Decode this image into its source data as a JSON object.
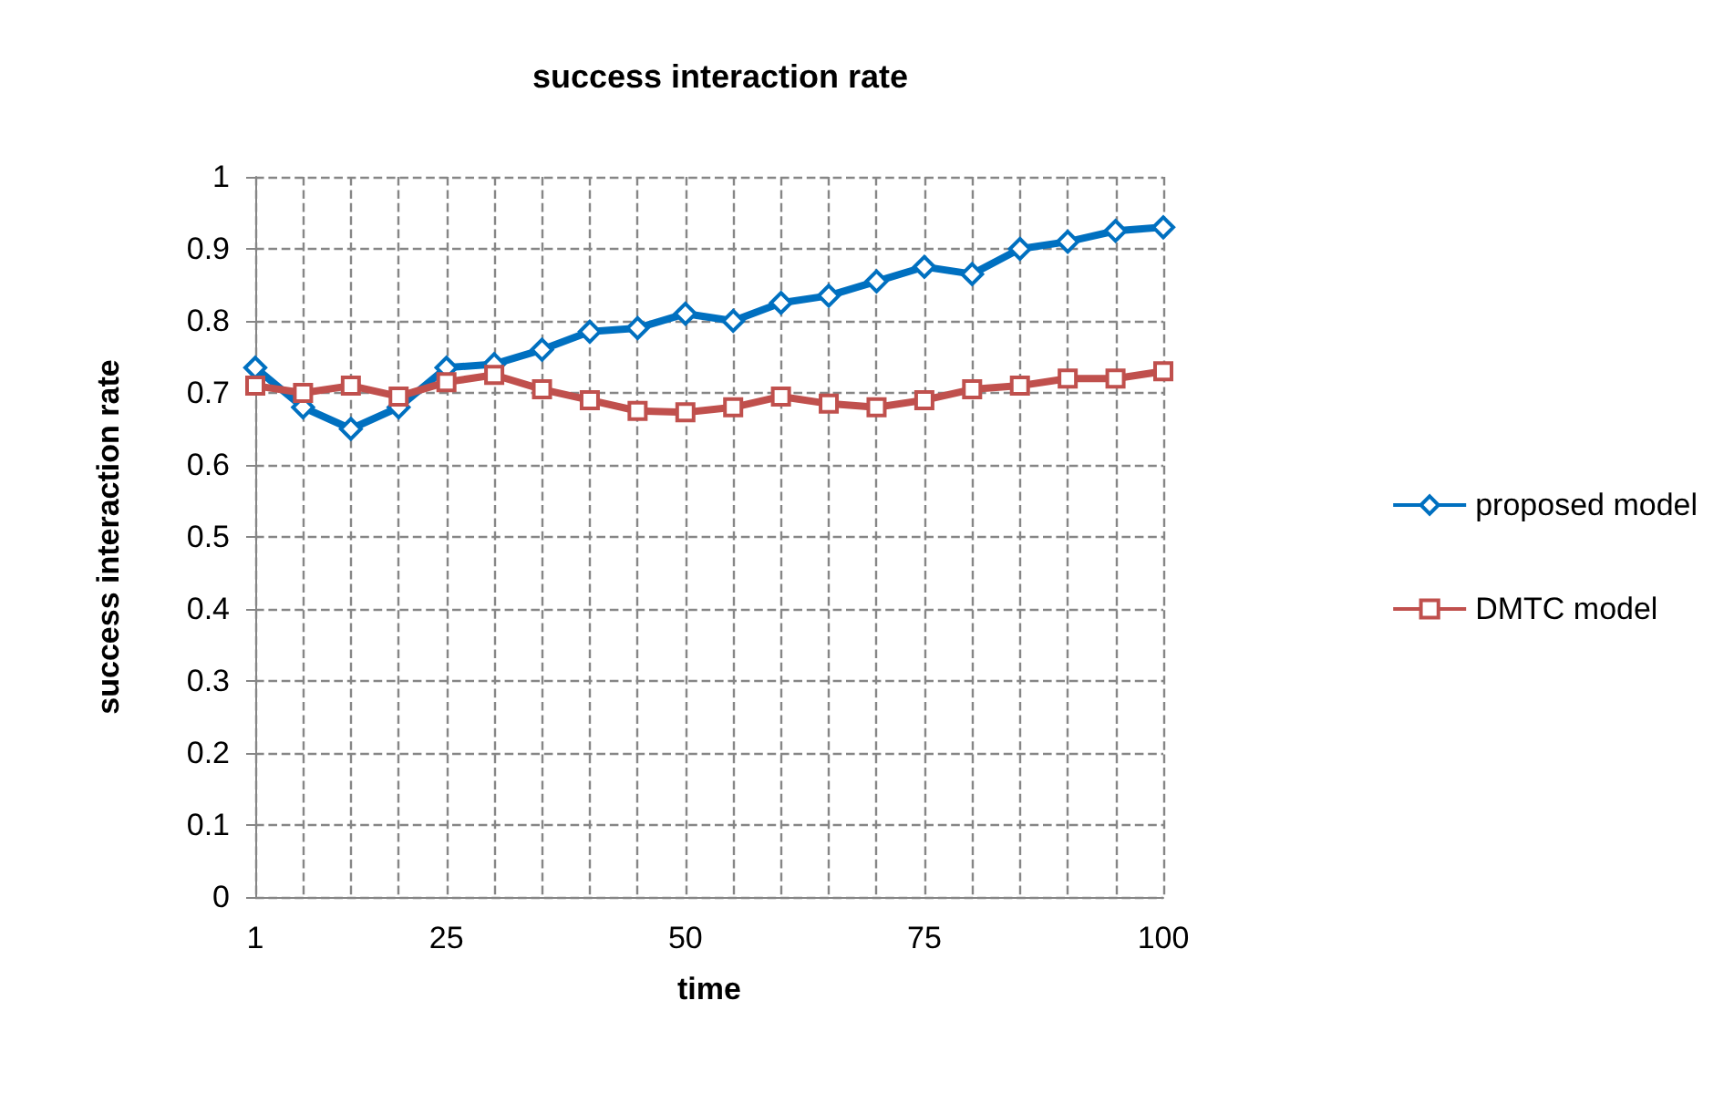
{
  "chart_data": {
    "type": "line",
    "title": "success interaction rate",
    "xlabel": "time",
    "ylabel": "success interaction rate",
    "categories": [
      "1",
      null,
      null,
      null,
      "25",
      null,
      null,
      null,
      null,
      "50",
      null,
      null,
      null,
      null,
      "75",
      null,
      null,
      null,
      null,
      "100"
    ],
    "series": [
      {
        "name": "proposed model",
        "color": "#0070c0",
        "marker": "diamond",
        "values": [
          0.735,
          0.68,
          0.65,
          0.68,
          0.735,
          0.74,
          0.76,
          0.785,
          0.79,
          0.81,
          0.8,
          0.825,
          0.835,
          0.855,
          0.875,
          0.865,
          0.9,
          0.91,
          0.925,
          0.93
        ]
      },
      {
        "name": "DMTC model",
        "color": "#c0504d",
        "marker": "square",
        "values": [
          0.71,
          0.7,
          0.71,
          0.695,
          0.715,
          0.725,
          0.705,
          0.69,
          0.675,
          0.673,
          0.68,
          0.695,
          0.685,
          0.68,
          0.69,
          0.705,
          0.71,
          0.72,
          0.72,
          0.73
        ]
      }
    ],
    "ylim": [
      0,
      1
    ],
    "yticks": [
      0,
      0.1,
      0.2,
      0.3,
      0.4,
      0.5,
      0.6,
      0.7,
      0.8,
      0.9,
      1
    ],
    "grid": true,
    "legend": "right"
  }
}
